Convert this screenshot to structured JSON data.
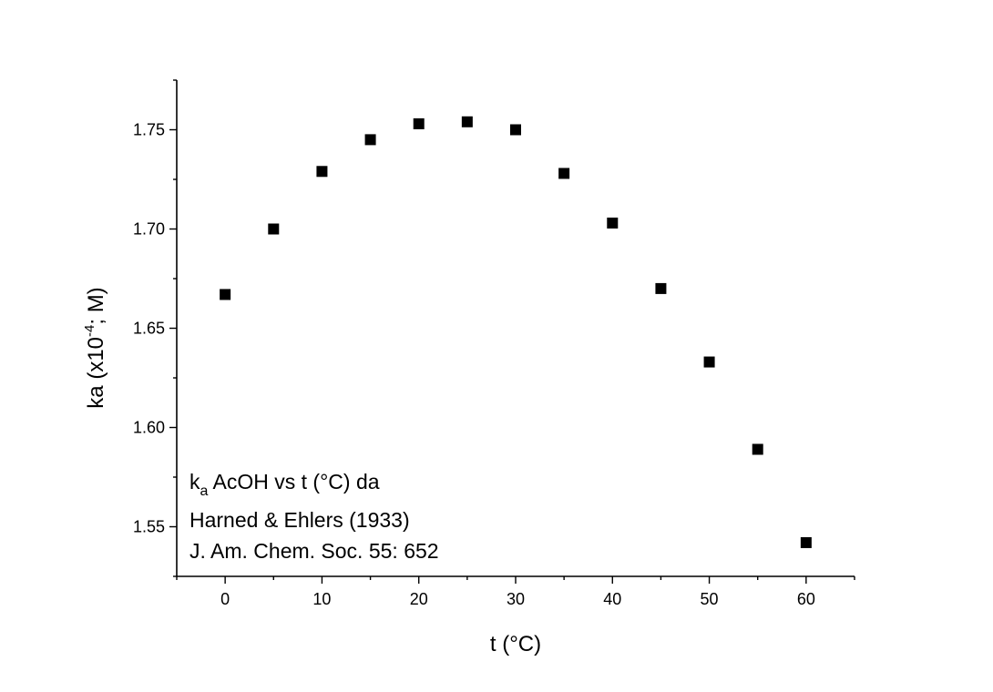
{
  "chart_data": {
    "type": "scatter",
    "x": [
      0,
      5,
      10,
      15,
      20,
      25,
      30,
      35,
      40,
      45,
      50,
      55,
      60
    ],
    "y": [
      1.667,
      1.7,
      1.729,
      1.745,
      1.753,
      1.754,
      1.75,
      1.728,
      1.703,
      1.67,
      1.633,
      1.589,
      1.542
    ],
    "xlabel": "t (°C)",
    "ylabel": {
      "prefix": "ka (x10",
      "superscript": "-4",
      "suffix": "; M)"
    },
    "xlim": [
      -5,
      65
    ],
    "ylim": [
      1.525,
      1.775
    ],
    "xticks": [
      "0",
      "10",
      "20",
      "30",
      "40",
      "50",
      "60"
    ],
    "yticks": [
      "1.55",
      "1.60",
      "1.65",
      "1.70",
      "1.75"
    ],
    "marker": "square",
    "marker_color": "#000000",
    "grid": false,
    "annotation": {
      "line1_k": "k",
      "line1_sub": "a",
      "line1_rest": " AcOH vs t (°C) da",
      "line2": "Harned & Ehlers (1933)",
      "line3": "J. Am. Chem. Soc. 55: 652"
    }
  }
}
